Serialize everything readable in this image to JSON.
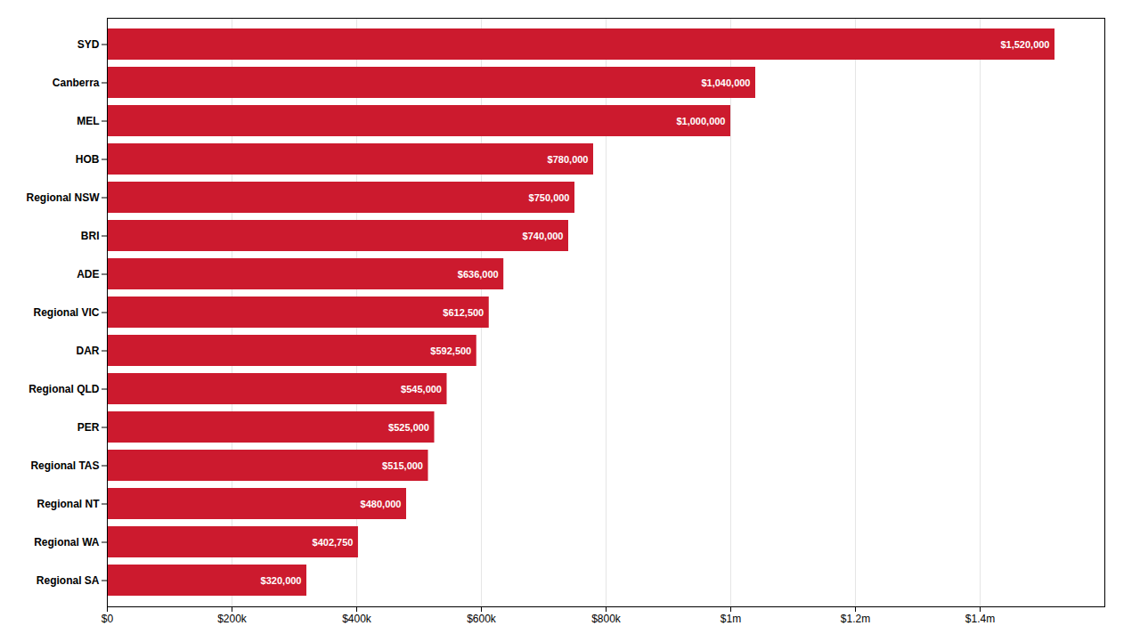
{
  "chart_data": {
    "type": "bar",
    "orientation": "horizontal",
    "categories": [
      "SYD",
      "Canberra",
      "MEL",
      "HOB",
      "Regional NSW",
      "BRI",
      "ADE",
      "Regional VIC",
      "DAR",
      "Regional QLD",
      "PER",
      "Regional TAS",
      "Regional NT",
      "Regional WA",
      "Regional SA"
    ],
    "values": [
      1520000,
      1040000,
      1000000,
      780000,
      750000,
      740000,
      636000,
      612500,
      592500,
      545000,
      525000,
      515000,
      480000,
      402750,
      320000
    ],
    "value_labels": [
      "$1,520,000",
      "$1,040,000",
      "$1,000,000",
      "$780,000",
      "$750,000",
      "$740,000",
      "$636,000",
      "$612,500",
      "$592,500",
      "$545,000",
      "$525,000",
      "$515,000",
      "$480,000",
      "$402,750",
      "$320,000"
    ],
    "data_labels": true,
    "color": "#cc1a2e",
    "xlim": [
      0,
      1600000
    ],
    "xticks": [
      {
        "value": 0,
        "label": "$0"
      },
      {
        "value": 200000,
        "label": "$200k"
      },
      {
        "value": 400000,
        "label": "$400k"
      },
      {
        "value": 600000,
        "label": "$600k"
      },
      {
        "value": 800000,
        "label": "$800k"
      },
      {
        "value": 1000000,
        "label": "$1m"
      },
      {
        "value": 1200000,
        "label": "$1.2m"
      },
      {
        "value": 1400000,
        "label": "$1.4m"
      }
    ],
    "grid": true
  }
}
